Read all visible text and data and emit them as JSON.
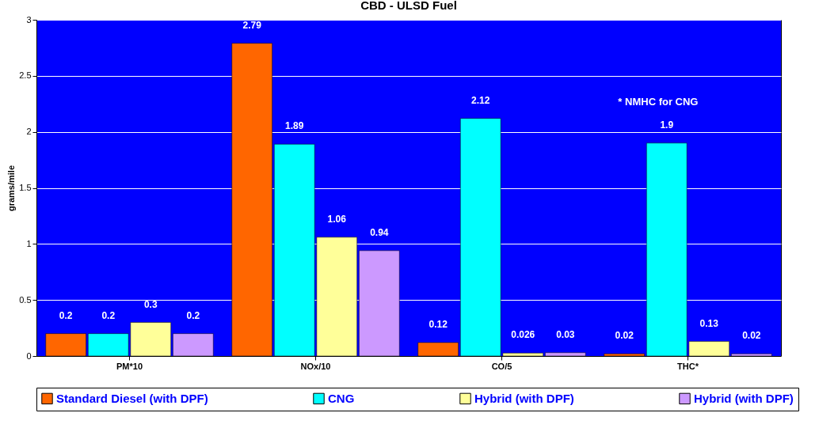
{
  "chart_data": {
    "type": "bar",
    "title": "CBD - ULSD Fuel",
    "ylabel": "grams/mile",
    "categories": [
      "PM*10",
      "NOx/10",
      "CO/5",
      "THC*"
    ],
    "series": [
      {
        "name": "Standard Diesel (with DPF)",
        "color": "#ff6600",
        "values": [
          0.2,
          2.79,
          0.12,
          0.02
        ]
      },
      {
        "name": "CNG",
        "color": "#00ffff",
        "values": [
          0.2,
          1.89,
          2.12,
          1.9
        ]
      },
      {
        "name": "Hybrid (with DPF)",
        "color": "#ffff99",
        "values": [
          0.3,
          1.06,
          0.026,
          0.13
        ]
      },
      {
        "name": "Hybrid (with DPF)",
        "color": "#cc99ff",
        "values": [
          0.2,
          0.94,
          0.03,
          0.02
        ]
      }
    ],
    "ylim": [
      0,
      3
    ],
    "yticks": [
      0,
      0.5,
      1,
      1.5,
      2,
      2.5,
      3
    ],
    "grid": "y",
    "legend": "bottom",
    "data_labels": true,
    "annotations": [
      "* NMHC for CNG"
    ]
  }
}
